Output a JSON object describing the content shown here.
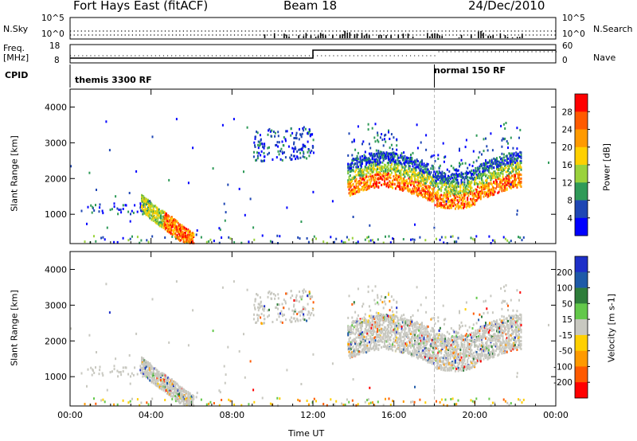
{
  "header": {
    "station": "Fort Hays East (fitACF)",
    "beam": "Beam 18",
    "date": "24/Dec/2010"
  },
  "noise_panel": {
    "left_label": "N.Sky",
    "right_label": "N.Search",
    "ticks": [
      "10^5",
      "10^0"
    ]
  },
  "freq_panel": {
    "left_label_line1": "Freq.",
    "left_label_line2": "[MHz]",
    "left_ticks": [
      "18",
      "8"
    ],
    "right_label": "Nave",
    "right_ticks": [
      "60",
      "0"
    ]
  },
  "cpid_panel": {
    "label": "CPID",
    "segments": [
      {
        "name": "themis 3300 RF",
        "start_hour": 0
      },
      {
        "name": "normal 150 RF",
        "start_hour": 18
      }
    ]
  },
  "chart_data": [
    {
      "type": "heatmap",
      "panel": "power",
      "ylabel": "Slant Range [km]",
      "xlabel": "Time UT",
      "xlim": [
        0,
        24
      ],
      "ylim": [
        180,
        4500
      ],
      "x_ticks": [
        "00:00",
        "04:00",
        "08:00",
        "12:00",
        "16:00",
        "20:00",
        "00:00"
      ],
      "y_ticks": [
        1000,
        2000,
        3000,
        4000
      ],
      "colorbar": {
        "label": "Power [dB]",
        "ticks": [
          "28",
          "24",
          "20",
          "16",
          "12",
          "8",
          "4"
        ],
        "colors": [
          "#ff0000",
          "#ff5a00",
          "#ff9a00",
          "#ffd000",
          "#9ad23c",
          "#2f9a58",
          "#1e46b4",
          "#0000ff"
        ]
      },
      "features": [
        {
          "desc": "early scatter",
          "t": [
            0.5,
            3.7
          ],
          "range": [
            1000,
            1300
          ]
        },
        {
          "desc": "evening band",
          "t": [
            3.5,
            6.0
          ],
          "range": [
            180,
            1400
          ]
        },
        {
          "desc": "mid scatter",
          "t": [
            9.0,
            12.0
          ],
          "range": [
            2400,
            3400
          ]
        },
        {
          "desc": "main band",
          "t": [
            13.7,
            22.3
          ],
          "range": [
            1300,
            3500
          ]
        }
      ]
    },
    {
      "type": "heatmap",
      "panel": "velocity",
      "ylabel": "Slant Range [km]",
      "xlabel": "Time UT",
      "xlim": [
        0,
        24
      ],
      "ylim": [
        180,
        4500
      ],
      "x_ticks": [
        "00:00",
        "04:00",
        "08:00",
        "12:00",
        "16:00",
        "20:00",
        "00:00"
      ],
      "y_ticks": [
        1000,
        2000,
        3000,
        4000
      ],
      "colorbar": {
        "label": "Velocity [m s-1]",
        "ticks": [
          "200",
          "100",
          "50",
          "15",
          "-15",
          "-50",
          "-100",
          "-200"
        ],
        "colors": [
          "#1d2fc8",
          "#1e5aa8",
          "#2e7d3a",
          "#63c84a",
          "#c8c8c0",
          "#ffd000",
          "#ff9a00",
          "#ff5a00",
          "#ff0000"
        ]
      }
    }
  ]
}
